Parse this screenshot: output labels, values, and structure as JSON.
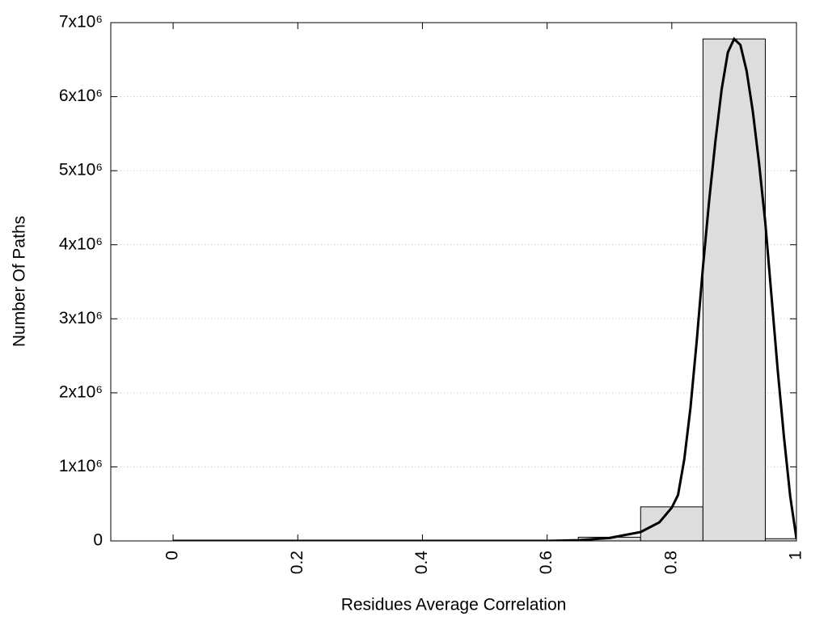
{
  "chart_data": [
    {
      "type": "histogram",
      "x_label": "Residues Average Correlation",
      "y_label": "Number Of Paths",
      "bins": [
        -0.05,
        0.05,
        0.15,
        0.25,
        0.35,
        0.45,
        0.55,
        0.65,
        0.75,
        0.85,
        0.95,
        1.05
      ],
      "values": [
        0,
        0,
        0,
        0,
        0,
        0,
        0,
        50000,
        460000,
        6780000,
        30000
      ],
      "color": "#dddddd",
      "xlim": [
        -0.1,
        1
      ],
      "xticks": [
        0,
        0.2,
        0.4,
        0.6,
        0.8,
        1
      ],
      "ylim": [
        0,
        7000000
      ],
      "yticks": [
        0,
        {
          "value": 1000000,
          "label": "1x10⁶"
        },
        {
          "value": 2000000,
          "label": "2x10⁶"
        },
        {
          "value": 3000000,
          "label": "3x10⁶"
        },
        {
          "value": 4000000,
          "label": "4x10⁶"
        },
        {
          "value": 5000000,
          "label": "5x10⁶"
        },
        {
          "value": 6000000,
          "label": "6x10⁶"
        },
        {
          "value": 7000000,
          "label": "7x10⁶"
        }
      ],
      "grid": true
    },
    {
      "type": "line",
      "color": "#000000",
      "x": [
        0,
        0.6,
        0.65,
        0.7,
        0.75,
        0.78,
        0.8,
        0.81,
        0.82,
        0.83,
        0.84,
        0.85,
        0.86,
        0.87,
        0.88,
        0.89,
        0.9,
        0.91,
        0.92,
        0.93,
        0.94,
        0.95,
        0.96,
        0.97,
        0.98,
        0.99,
        1.0
      ],
      "values": [
        0,
        0,
        10000,
        40000,
        120000,
        250000,
        450000,
        620000,
        1100000,
        1800000,
        2700000,
        3700000,
        4600000,
        5400000,
        6100000,
        6600000,
        6780000,
        6700000,
        6350000,
        5800000,
        5100000,
        4300000,
        3300000,
        2300000,
        1400000,
        600000,
        30000
      ]
    }
  ]
}
